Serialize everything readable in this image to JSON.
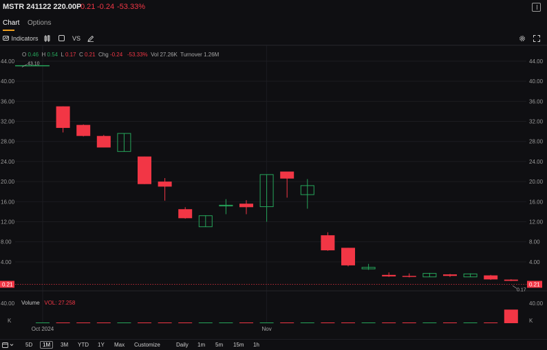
{
  "header": {
    "symbol": "MSTR 241122 220.00P",
    "last": "0.21",
    "change": "-0.24",
    "change_pct": "-53.33%"
  },
  "tabs": [
    {
      "label": "Chart"
    },
    {
      "label": "Options"
    }
  ],
  "toolbar": {
    "indicators_label": "Indicators",
    "vs_label": "VS"
  },
  "ohlc": {
    "o_label": "O",
    "o": "0.46",
    "h_label": "H",
    "h": "0.54",
    "l_label": "L",
    "l": "0.17",
    "c_label": "C",
    "c": "0.21",
    "chg_label": "Chg",
    "chg": "-0.24",
    "chg_pct": "-53.33%",
    "vol_label": "Vol",
    "vol": "27.26K",
    "turnover_label": "Turnover",
    "turnover": "1.26M"
  },
  "volume_legend": {
    "label": "Volume",
    "vol": "VOL: 27.258"
  },
  "timeframes": [
    "5D",
    "1M",
    "3M",
    "YTD",
    "1Y",
    "Max",
    "Customize",
    "Daily",
    "1m",
    "5m",
    "15m",
    "1h"
  ],
  "active_timeframe": "1M",
  "colors": {
    "up": "#26a65b",
    "down": "#f23645",
    "background": "#0f0f12"
  },
  "chart_data": {
    "type": "candlestick",
    "y_ticks": [
      "44.00",
      "40.00",
      "36.00",
      "32.00",
      "28.00",
      "24.00",
      "20.00",
      "16.00",
      "12.00",
      "8.00",
      "4.00"
    ],
    "ylim": [
      0,
      45
    ],
    "x_labels": [
      {
        "label": "Oct 2024",
        "index": 0
      },
      {
        "label": "Nov",
        "index": 11
      }
    ],
    "last_price_label": "0.21",
    "high_annotation": "43.10",
    "low_annotation": "0.17",
    "volume_axis_label": "40.00",
    "volume_unit_label": "K",
    "candles": [
      {
        "o": 43.1,
        "h": 43.1,
        "l": 43.1,
        "c": 43.1
      },
      {
        "o": 35.0,
        "h": 35.0,
        "l": 29.8,
        "c": 30.7
      },
      {
        "o": 31.3,
        "h": 31.4,
        "l": 29.0,
        "c": 29.1
      },
      {
        "o": 29.1,
        "h": 29.3,
        "l": 26.8,
        "c": 26.8
      },
      {
        "o": 26.0,
        "h": 29.6,
        "l": 26.0,
        "c": 29.6
      },
      {
        "o": 25.0,
        "h": 25.0,
        "l": 19.5,
        "c": 19.5
      },
      {
        "o": 20.0,
        "h": 20.7,
        "l": 16.2,
        "c": 19.0
      },
      {
        "o": 14.5,
        "h": 14.9,
        "l": 12.6,
        "c": 12.7
      },
      {
        "o": 11.0,
        "h": 13.3,
        "l": 11.0,
        "c": 13.2
      },
      {
        "o": 15.2,
        "h": 16.5,
        "l": 13.5,
        "c": 15.3
      },
      {
        "o": 15.6,
        "h": 16.3,
        "l": 13.5,
        "c": 14.9
      },
      {
        "o": 15.0,
        "h": 21.4,
        "l": 12.0,
        "c": 21.4
      },
      {
        "o": 22.0,
        "h": 22.0,
        "l": 16.8,
        "c": 20.6
      },
      {
        "o": 17.4,
        "h": 20.5,
        "l": 14.6,
        "c": 19.2
      },
      {
        "o": 9.3,
        "h": 9.9,
        "l": 6.2,
        "c": 6.3
      },
      {
        "o": 6.8,
        "h": 6.8,
        "l": 3.1,
        "c": 3.3
      },
      {
        "o": 2.6,
        "h": 3.6,
        "l": 2.4,
        "c": 2.9
      },
      {
        "o": 1.4,
        "h": 1.9,
        "l": 1.0,
        "c": 1.1
      },
      {
        "o": 1.2,
        "h": 1.7,
        "l": 0.9,
        "c": 1.0
      },
      {
        "o": 1.0,
        "h": 1.8,
        "l": 1.0,
        "c": 1.7
      },
      {
        "o": 1.5,
        "h": 1.6,
        "l": 1.0,
        "c": 1.2
      },
      {
        "o": 1.0,
        "h": 1.7,
        "l": 1.0,
        "c": 1.6
      },
      {
        "o": 1.3,
        "h": 1.4,
        "l": 0.4,
        "c": 0.5
      },
      {
        "o": 0.46,
        "h": 0.54,
        "l": 0.17,
        "c": 0.21
      }
    ],
    "volumes_k": [
      0.3,
      0.4,
      0.3,
      0.3,
      0.3,
      0.3,
      0.3,
      0.3,
      0.3,
      0.3,
      0.3,
      0.3,
      0.3,
      0.3,
      0.3,
      0.3,
      0.3,
      0.3,
      0.3,
      0.3,
      0.3,
      0.3,
      1.2,
      27.258
    ]
  }
}
